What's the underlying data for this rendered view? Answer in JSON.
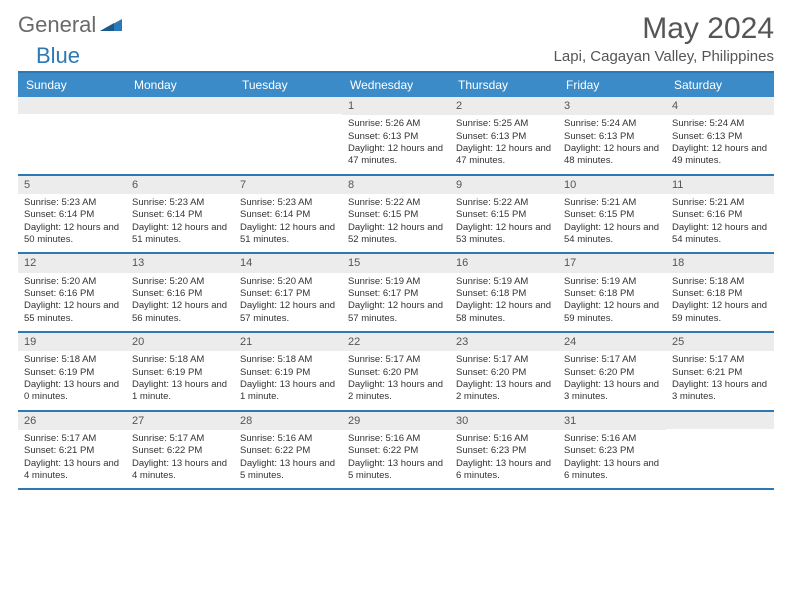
{
  "logo": {
    "text1": "General",
    "text2": "Blue"
  },
  "title": "May 2024",
  "location": "Lapi, Cagayan Valley, Philippines",
  "colors": {
    "accent": "#2d79b5",
    "header_bg": "#3b8bc8",
    "daynum_bg": "#ececec",
    "text": "#333333"
  },
  "day_names": [
    "Sunday",
    "Monday",
    "Tuesday",
    "Wednesday",
    "Thursday",
    "Friday",
    "Saturday"
  ],
  "weeks": [
    [
      null,
      null,
      null,
      {
        "n": "1",
        "sr": "Sunrise: 5:26 AM",
        "ss": "Sunset: 6:13 PM",
        "dl": "Daylight: 12 hours and 47 minutes."
      },
      {
        "n": "2",
        "sr": "Sunrise: 5:25 AM",
        "ss": "Sunset: 6:13 PM",
        "dl": "Daylight: 12 hours and 47 minutes."
      },
      {
        "n": "3",
        "sr": "Sunrise: 5:24 AM",
        "ss": "Sunset: 6:13 PM",
        "dl": "Daylight: 12 hours and 48 minutes."
      },
      {
        "n": "4",
        "sr": "Sunrise: 5:24 AM",
        "ss": "Sunset: 6:13 PM",
        "dl": "Daylight: 12 hours and 49 minutes."
      }
    ],
    [
      {
        "n": "5",
        "sr": "Sunrise: 5:23 AM",
        "ss": "Sunset: 6:14 PM",
        "dl": "Daylight: 12 hours and 50 minutes."
      },
      {
        "n": "6",
        "sr": "Sunrise: 5:23 AM",
        "ss": "Sunset: 6:14 PM",
        "dl": "Daylight: 12 hours and 51 minutes."
      },
      {
        "n": "7",
        "sr": "Sunrise: 5:23 AM",
        "ss": "Sunset: 6:14 PM",
        "dl": "Daylight: 12 hours and 51 minutes."
      },
      {
        "n": "8",
        "sr": "Sunrise: 5:22 AM",
        "ss": "Sunset: 6:15 PM",
        "dl": "Daylight: 12 hours and 52 minutes."
      },
      {
        "n": "9",
        "sr": "Sunrise: 5:22 AM",
        "ss": "Sunset: 6:15 PM",
        "dl": "Daylight: 12 hours and 53 minutes."
      },
      {
        "n": "10",
        "sr": "Sunrise: 5:21 AM",
        "ss": "Sunset: 6:15 PM",
        "dl": "Daylight: 12 hours and 54 minutes."
      },
      {
        "n": "11",
        "sr": "Sunrise: 5:21 AM",
        "ss": "Sunset: 6:16 PM",
        "dl": "Daylight: 12 hours and 54 minutes."
      }
    ],
    [
      {
        "n": "12",
        "sr": "Sunrise: 5:20 AM",
        "ss": "Sunset: 6:16 PM",
        "dl": "Daylight: 12 hours and 55 minutes."
      },
      {
        "n": "13",
        "sr": "Sunrise: 5:20 AM",
        "ss": "Sunset: 6:16 PM",
        "dl": "Daylight: 12 hours and 56 minutes."
      },
      {
        "n": "14",
        "sr": "Sunrise: 5:20 AM",
        "ss": "Sunset: 6:17 PM",
        "dl": "Daylight: 12 hours and 57 minutes."
      },
      {
        "n": "15",
        "sr": "Sunrise: 5:19 AM",
        "ss": "Sunset: 6:17 PM",
        "dl": "Daylight: 12 hours and 57 minutes."
      },
      {
        "n": "16",
        "sr": "Sunrise: 5:19 AM",
        "ss": "Sunset: 6:18 PM",
        "dl": "Daylight: 12 hours and 58 minutes."
      },
      {
        "n": "17",
        "sr": "Sunrise: 5:19 AM",
        "ss": "Sunset: 6:18 PM",
        "dl": "Daylight: 12 hours and 59 minutes."
      },
      {
        "n": "18",
        "sr": "Sunrise: 5:18 AM",
        "ss": "Sunset: 6:18 PM",
        "dl": "Daylight: 12 hours and 59 minutes."
      }
    ],
    [
      {
        "n": "19",
        "sr": "Sunrise: 5:18 AM",
        "ss": "Sunset: 6:19 PM",
        "dl": "Daylight: 13 hours and 0 minutes."
      },
      {
        "n": "20",
        "sr": "Sunrise: 5:18 AM",
        "ss": "Sunset: 6:19 PM",
        "dl": "Daylight: 13 hours and 1 minute."
      },
      {
        "n": "21",
        "sr": "Sunrise: 5:18 AM",
        "ss": "Sunset: 6:19 PM",
        "dl": "Daylight: 13 hours and 1 minute."
      },
      {
        "n": "22",
        "sr": "Sunrise: 5:17 AM",
        "ss": "Sunset: 6:20 PM",
        "dl": "Daylight: 13 hours and 2 minutes."
      },
      {
        "n": "23",
        "sr": "Sunrise: 5:17 AM",
        "ss": "Sunset: 6:20 PM",
        "dl": "Daylight: 13 hours and 2 minutes."
      },
      {
        "n": "24",
        "sr": "Sunrise: 5:17 AM",
        "ss": "Sunset: 6:20 PM",
        "dl": "Daylight: 13 hours and 3 minutes."
      },
      {
        "n": "25",
        "sr": "Sunrise: 5:17 AM",
        "ss": "Sunset: 6:21 PM",
        "dl": "Daylight: 13 hours and 3 minutes."
      }
    ],
    [
      {
        "n": "26",
        "sr": "Sunrise: 5:17 AM",
        "ss": "Sunset: 6:21 PM",
        "dl": "Daylight: 13 hours and 4 minutes."
      },
      {
        "n": "27",
        "sr": "Sunrise: 5:17 AM",
        "ss": "Sunset: 6:22 PM",
        "dl": "Daylight: 13 hours and 4 minutes."
      },
      {
        "n": "28",
        "sr": "Sunrise: 5:16 AM",
        "ss": "Sunset: 6:22 PM",
        "dl": "Daylight: 13 hours and 5 minutes."
      },
      {
        "n": "29",
        "sr": "Sunrise: 5:16 AM",
        "ss": "Sunset: 6:22 PM",
        "dl": "Daylight: 13 hours and 5 minutes."
      },
      {
        "n": "30",
        "sr": "Sunrise: 5:16 AM",
        "ss": "Sunset: 6:23 PM",
        "dl": "Daylight: 13 hours and 6 minutes."
      },
      {
        "n": "31",
        "sr": "Sunrise: 5:16 AM",
        "ss": "Sunset: 6:23 PM",
        "dl": "Daylight: 13 hours and 6 minutes."
      },
      null
    ]
  ]
}
